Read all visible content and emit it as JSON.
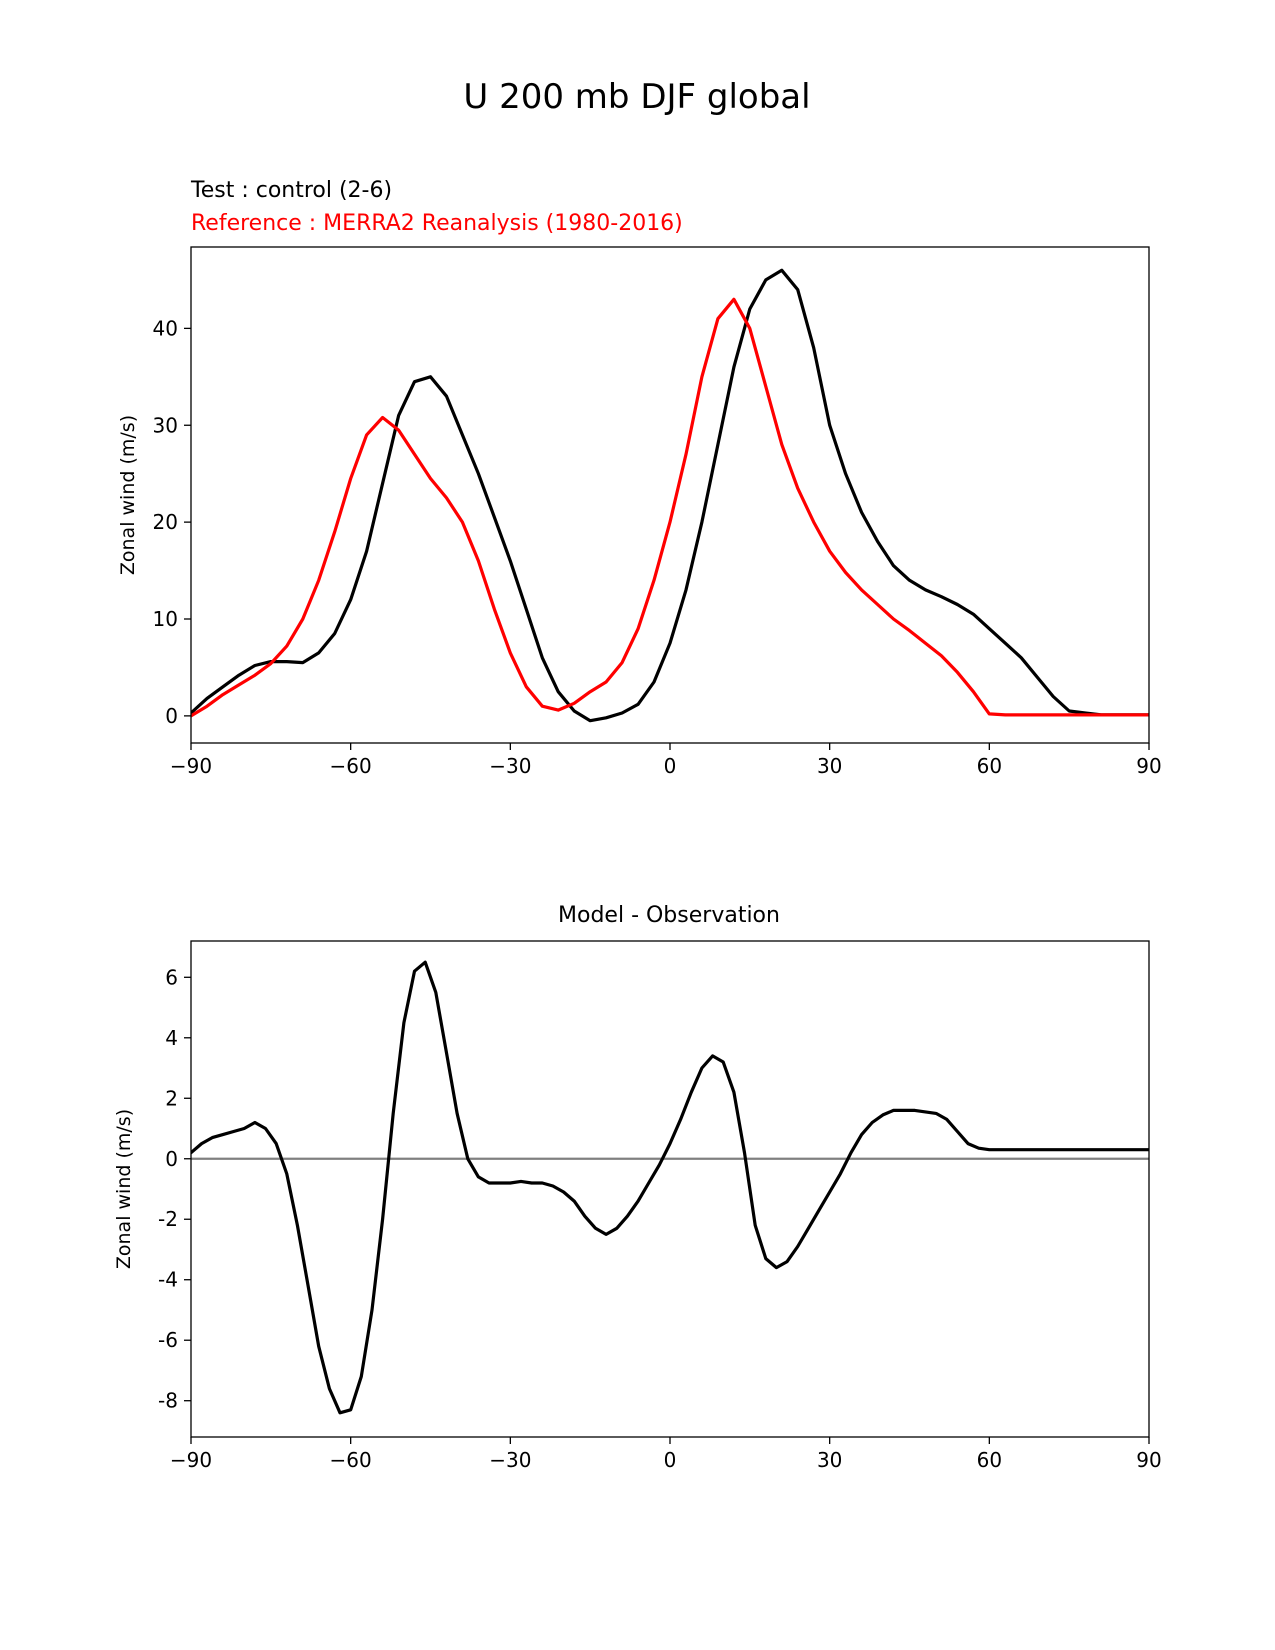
{
  "figure": {
    "suptitle": "U 200 mb DJF global"
  },
  "colors": {
    "test": "#000000",
    "reference": "#ff0000",
    "zero_line": "#808080",
    "axes": "#000000"
  },
  "chart_data": [
    {
      "type": "line",
      "test_label": "Test : control (2-6)",
      "reference_label": "Reference : MERRA2 Reanalysis (1980-2016)",
      "title": "",
      "xlabel": "",
      "ylabel": "Zonal wind (m/s)",
      "xlim": [
        -90,
        90
      ],
      "ylim": [
        -2.8,
        48.4
      ],
      "xticks": [
        -90,
        -60,
        -30,
        0,
        30,
        60,
        90
      ],
      "xtick_labels": [
        "−90",
        "−60",
        "−30",
        "0",
        "30",
        "60",
        "90"
      ],
      "yticks": [
        0,
        10,
        20,
        30,
        40
      ],
      "ytick_labels": [
        "0",
        "10",
        "20",
        "30",
        "40"
      ],
      "series": [
        {
          "name": "Test : control (2-6)",
          "color": "#000000",
          "x": [
            -90,
            -87,
            -84,
            -81,
            -78,
            -75,
            -72,
            -69,
            -66,
            -63,
            -60,
            -57,
            -54,
            -51,
            -48,
            -45,
            -42,
            -39,
            -36,
            -33,
            -30,
            -27,
            -24,
            -21,
            -18,
            -15,
            -12,
            -9,
            -6,
            -3,
            0,
            3,
            6,
            9,
            12,
            15,
            18,
            21,
            24,
            27,
            30,
            33,
            36,
            39,
            42,
            45,
            48,
            51,
            54,
            57,
            60,
            63,
            66,
            69,
            72,
            75,
            78,
            81,
            84,
            87,
            90
          ],
          "values": [
            0.3,
            1.8,
            3.0,
            4.2,
            5.2,
            5.6,
            5.6,
            5.5,
            6.5,
            8.5,
            12,
            17,
            24,
            31,
            34.5,
            35,
            33,
            29,
            25,
            20.5,
            16,
            11,
            6,
            2.5,
            0.5,
            -0.5,
            -0.2,
            0.3,
            1.2,
            3.5,
            7.5,
            13,
            20,
            28,
            36,
            42,
            45,
            46,
            44,
            38,
            30,
            25,
            21,
            18,
            15.5,
            14,
            13,
            12.3,
            11.5,
            10.5,
            9,
            7.5,
            6,
            4,
            2,
            0.5,
            0.3,
            0.1,
            0.1,
            0.1,
            0.1
          ]
        },
        {
          "name": "Reference : MERRA2 Reanalysis (1980-2016)",
          "color": "#ff0000",
          "x": [
            -90,
            -87,
            -84,
            -81,
            -78,
            -75,
            -72,
            -69,
            -66,
            -63,
            -60,
            -57,
            -54,
            -51,
            -48,
            -45,
            -42,
            -39,
            -36,
            -33,
            -30,
            -27,
            -24,
            -21,
            -18,
            -15,
            -12,
            -9,
            -6,
            -3,
            0,
            3,
            6,
            9,
            12,
            15,
            18,
            21,
            24,
            27,
            30,
            33,
            36,
            39,
            42,
            45,
            48,
            51,
            54,
            57,
            60,
            63,
            66,
            69,
            72,
            75,
            78,
            81,
            84,
            87,
            90
          ],
          "values": [
            0.0,
            1.0,
            2.2,
            3.2,
            4.2,
            5.4,
            7.2,
            10,
            14,
            19,
            24.5,
            29,
            30.8,
            29.5,
            27,
            24.5,
            22.5,
            20,
            16,
            11,
            6.5,
            3,
            1,
            0.6,
            1.3,
            2.5,
            3.5,
            5.5,
            9,
            14,
            20,
            27,
            35,
            41,
            43,
            40,
            34,
            28,
            23.5,
            20,
            17,
            14.8,
            13,
            11.5,
            10,
            8.8,
            7.5,
            6.2,
            4.5,
            2.5,
            0.2,
            0.1,
            0.1,
            0.1,
            0.1,
            0.1,
            0.1,
            0.1,
            0.1,
            0.1,
            0.1
          ]
        }
      ]
    },
    {
      "type": "line",
      "title": "Model - Observation",
      "xlabel": "",
      "ylabel": "Zonal wind (m/s)",
      "xlim": [
        -90,
        90
      ],
      "ylim": [
        -9.2,
        7.2
      ],
      "xticks": [
        -90,
        -60,
        -30,
        0,
        30,
        60,
        90
      ],
      "xtick_labels": [
        "−90",
        "−60",
        "−30",
        "0",
        "30",
        "60",
        "90"
      ],
      "yticks": [
        6,
        4,
        2,
        0,
        -2,
        -4,
        -6,
        -8
      ],
      "ytick_labels": [
        "6",
        "4",
        "2",
        "0",
        "-2",
        "-4",
        "-6",
        "-8"
      ],
      "zero_line": 0,
      "series": [
        {
          "name": "Model - Observation",
          "color": "#000000",
          "x": [
            -90,
            -88,
            -86,
            -84,
            -82,
            -80,
            -78,
            -76,
            -74,
            -72,
            -70,
            -68,
            -66,
            -64,
            -62,
            -60,
            -58,
            -56,
            -54,
            -52,
            -50,
            -48,
            -46,
            -44,
            -42,
            -40,
            -38,
            -36,
            -34,
            -32,
            -30,
            -28,
            -26,
            -24,
            -22,
            -20,
            -18,
            -16,
            -14,
            -12,
            -10,
            -8,
            -6,
            -4,
            -2,
            0,
            2,
            4,
            6,
            8,
            10,
            12,
            14,
            16,
            18,
            20,
            22,
            24,
            26,
            28,
            30,
            32,
            34,
            36,
            38,
            40,
            42,
            44,
            46,
            48,
            50,
            52,
            54,
            56,
            58,
            60,
            62,
            64,
            66,
            68,
            70,
            72,
            74,
            76,
            78,
            80,
            82,
            84,
            86,
            88,
            90
          ],
          "values": [
            0.2,
            0.5,
            0.7,
            0.8,
            0.9,
            1.0,
            1.2,
            1.0,
            0.5,
            -0.5,
            -2.2,
            -4.2,
            -6.2,
            -7.6,
            -8.4,
            -8.3,
            -7.2,
            -5,
            -2,
            1.5,
            4.5,
            6.2,
            6.5,
            5.5,
            3.5,
            1.5,
            0,
            -0.6,
            -0.8,
            -0.8,
            -0.8,
            -0.75,
            -0.8,
            -0.8,
            -0.9,
            -1.1,
            -1.4,
            -1.9,
            -2.3,
            -2.5,
            -2.3,
            -1.9,
            -1.4,
            -0.8,
            -0.2,
            0.5,
            1.3,
            2.2,
            3.0,
            3.4,
            3.2,
            2.2,
            0.2,
            -2.2,
            -3.3,
            -3.6,
            -3.4,
            -2.9,
            -2.3,
            -1.7,
            -1.1,
            -0.5,
            0.2,
            0.8,
            1.2,
            1.45,
            1.6,
            1.6,
            1.6,
            1.55,
            1.5,
            1.3,
            0.9,
            0.5,
            0.35,
            0.3,
            0.3,
            0.3,
            0.3,
            0.3,
            0.3,
            0.3,
            0.3,
            0.3,
            0.3,
            0.3,
            0.3,
            0.3,
            0.3,
            0.3,
            0.3
          ]
        }
      ]
    }
  ]
}
